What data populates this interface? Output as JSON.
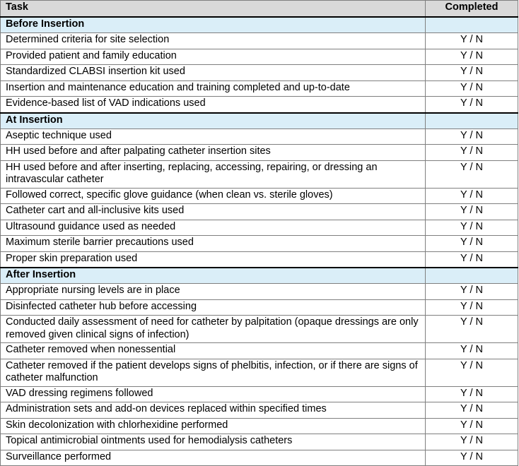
{
  "table": {
    "columns": [
      "Task",
      "Completed"
    ],
    "sections": [
      {
        "title": "Before Insertion",
        "rows": [
          [
            "Determined criteria for site selection",
            "Y / N"
          ],
          [
            "Provided patient and family education",
            "Y / N"
          ],
          [
            "Standardized CLABSI insertion kit used",
            "Y / N"
          ],
          [
            "Insertion and maintenance education and training completed and up-to-date",
            "Y / N"
          ],
          [
            "Evidence-based list of VAD indications used",
            "Y / N"
          ]
        ]
      },
      {
        "title": "At Insertion",
        "rows": [
          [
            "Aseptic technique used",
            "Y / N"
          ],
          [
            "HH used before and after palpating catheter insertion sites",
            "Y / N"
          ],
          [
            "HH used before and after inserting, replacing, accessing, repairing, or dressing an intravascular catheter",
            "Y / N"
          ],
          [
            "Followed correct, specific glove guidance (when clean vs. sterile gloves)",
            "Y / N"
          ],
          [
            "Catheter cart and all-inclusive kits used",
            "Y / N"
          ],
          [
            "Ultrasound guidance used as needed",
            "Y / N"
          ],
          [
            "Maximum sterile barrier precautions used",
            "Y / N"
          ],
          [
            "Proper skin preparation used",
            "Y / N"
          ]
        ]
      },
      {
        "title": "After Insertion",
        "rows": [
          [
            "Appropriate nursing levels are in place",
            "Y / N"
          ],
          [
            "Disinfected catheter hub before accessing",
            "Y / N"
          ],
          [
            "Conducted daily assessment of need for catheter by palpitation (opaque dressings are only removed given clinical signs of infection)",
            "Y / N"
          ],
          [
            "Catheter removed when nonessential",
            "Y / N"
          ],
          [
            "Catheter removed if the patient develops signs of phelbitis, infection, or if there are signs of catheter malfunction",
            "Y / N"
          ],
          [
            "VAD dressing regimens followed",
            "Y / N"
          ],
          [
            "Administration sets and add-on devices replaced within specified times",
            "Y / N"
          ],
          [
            "Skin decolonization with chlorhexidine performed",
            "Y / N"
          ],
          [
            "Topical antimicrobial ointments used for hemodialysis catheters",
            "Y / N"
          ],
          [
            "Surveillance performed",
            "Y / N"
          ]
        ]
      }
    ]
  }
}
